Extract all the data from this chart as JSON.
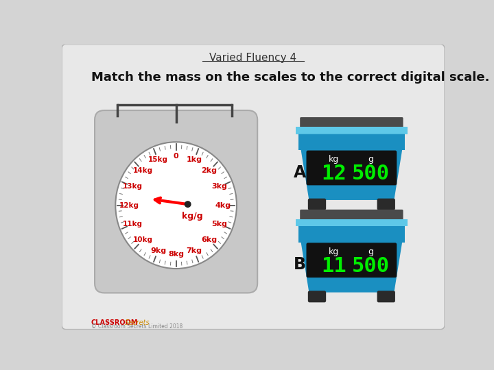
{
  "title": "Varied Fluency 4",
  "instruction": "Match the mass on the scales to the correct digital scale.",
  "background_color": "#d4d4d4",
  "panel_color": "#e8e8e8",
  "scale_labels": [
    "0",
    "1kg",
    "2kg",
    "3kg",
    "4kg",
    "5kg",
    "6kg",
    "7kg",
    "8kg",
    "9kg",
    "10kg",
    "11kg",
    "12kg",
    "13kg",
    "14kg",
    "15kg"
  ],
  "digital_scales": [
    {
      "label": "A",
      "kg": "12",
      "g": "500"
    },
    {
      "label": "B",
      "kg": "11",
      "g": "500"
    }
  ],
  "scale_body_color": "#1a8fc1",
  "scale_light_top_color": "#5ec8e8",
  "scale_display_color": "#111111",
  "scale_text_color": "#00ee00",
  "scale_top_color": "#4a4a4a",
  "feet_color": "#2a2a2a"
}
